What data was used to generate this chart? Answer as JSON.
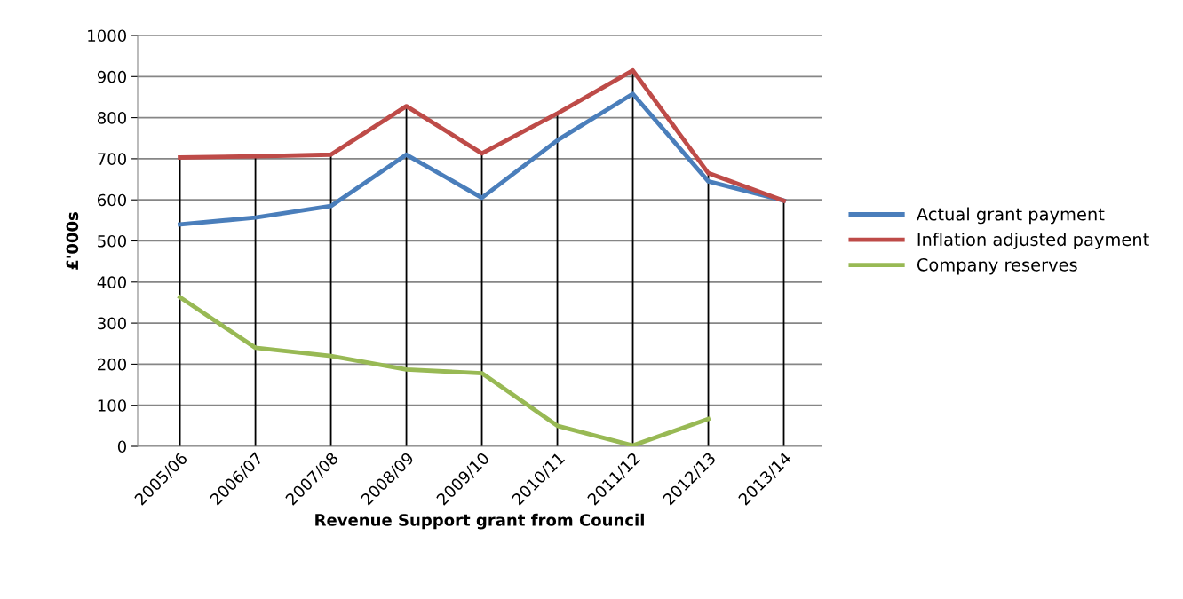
{
  "chart_data": {
    "type": "line",
    "xlabel": "Revenue Support grant from Council",
    "ylabel": "£'000s",
    "categories": [
      "2005/06",
      "2006/07",
      "2007/08",
      "2008/09",
      "2009/10",
      "2010/11",
      "2011/12",
      "2012/13",
      "2013/14"
    ],
    "series": [
      {
        "name": "Actual grant payment",
        "color": "#4a7ebb",
        "values": [
          540,
          557,
          585,
          710,
          605,
          745,
          858,
          645,
          598
        ]
      },
      {
        "name": "Inflation adjusted payment",
        "color": "#be4b48",
        "values": [
          703,
          706,
          710,
          828,
          713,
          810,
          915,
          665,
          598
        ]
      },
      {
        "name": "Company reserves",
        "color": "#98b954",
        "values": [
          363,
          240,
          220,
          187,
          178,
          50,
          2,
          67,
          null
        ]
      }
    ],
    "ref_lines": [
      {
        "axis": "x",
        "value": "2005/06",
        "color": "#000000"
      },
      {
        "axis": "x",
        "value": "2006/07",
        "color": "#000000"
      },
      {
        "axis": "x",
        "value": "2007/08",
        "color": "#000000"
      },
      {
        "axis": "x",
        "value": "2008/09",
        "color": "#000000"
      },
      {
        "axis": "x",
        "value": "2009/10",
        "color": "#000000"
      },
      {
        "axis": "x",
        "value": "2010/11",
        "color": "#000000"
      },
      {
        "axis": "x",
        "value": "2011/12",
        "color": "#000000"
      },
      {
        "axis": "x",
        "value": "2012/13",
        "color": "#000000"
      },
      {
        "axis": "x",
        "value": "2013/14",
        "color": "#000000"
      }
    ],
    "ylim": [
      0,
      1000
    ],
    "yticks": [
      0,
      100,
      200,
      300,
      400,
      500,
      600,
      700,
      800,
      900,
      1000
    ],
    "grid": "y",
    "legend": "right",
    "marker": "none",
    "line_style": "solid"
  }
}
